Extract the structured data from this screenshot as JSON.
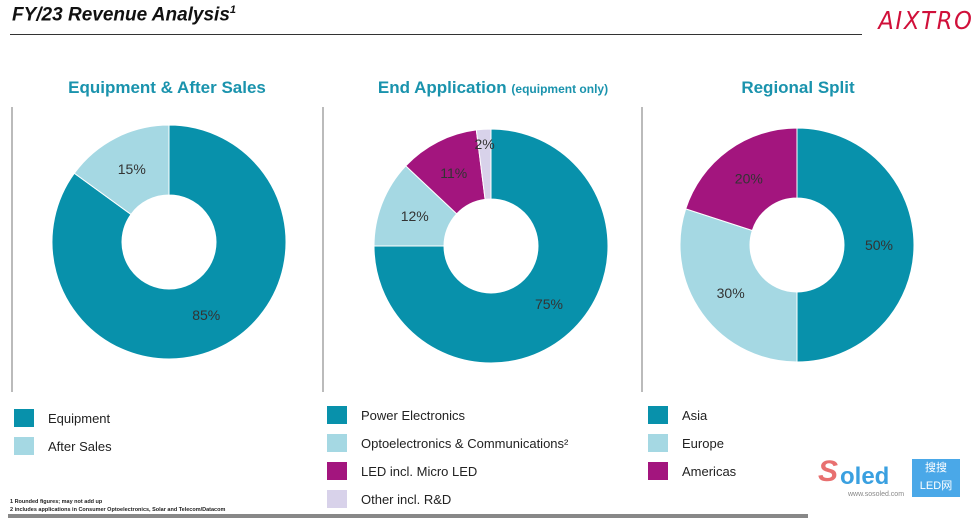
{
  "header": {
    "title": "FY/23 Revenue Analysis",
    "title_sup": "1",
    "logo": "AIXTRON"
  },
  "colors": {
    "teal": "#0891ab",
    "light_blue": "#a5d8e3",
    "magenta": "#a3157e",
    "lavender": "#d8d2ea",
    "title": "#1a93ad"
  },
  "chart_data": [
    {
      "type": "pie",
      "donut": true,
      "title": "Equipment & After Sales",
      "categories": [
        "Equipment",
        "After Sales"
      ],
      "values": [
        85,
        15
      ],
      "labels": [
        "85%",
        "15%"
      ],
      "colors": [
        "#0891ab",
        "#a5d8e3"
      ],
      "legend": "bottom"
    },
    {
      "type": "pie",
      "donut": true,
      "title": "End Application",
      "subtitle": "(equipment only)",
      "categories": [
        "Power Electronics",
        "Optoelectronics & Communications²",
        "LED incl. Micro LED",
        "Other incl. R&D"
      ],
      "values": [
        75,
        12,
        11,
        2
      ],
      "labels": [
        "75%",
        "12%",
        "11%",
        "2%"
      ],
      "colors": [
        "#0891ab",
        "#a5d8e3",
        "#a3157e",
        "#d8d2ea"
      ],
      "legend": "bottom"
    },
    {
      "type": "pie",
      "donut": true,
      "title": "Regional Split",
      "categories": [
        "Asia",
        "Europe",
        "Americas"
      ],
      "values": [
        50,
        30,
        20
      ],
      "labels": [
        "50%",
        "30%",
        "20%"
      ],
      "colors": [
        "#0891ab",
        "#a5d8e3",
        "#a3157e"
      ],
      "legend": "bottom"
    }
  ],
  "footnotes": [
    "1 Rounded figures; may not add up",
    "2 includes applications in Consumer Optoelectronics, Solar and Telecom/Datacom"
  ],
  "watermark": {
    "brand": "Soled",
    "cn": "搜搜LED网",
    "url": "www.sosoled.com"
  }
}
